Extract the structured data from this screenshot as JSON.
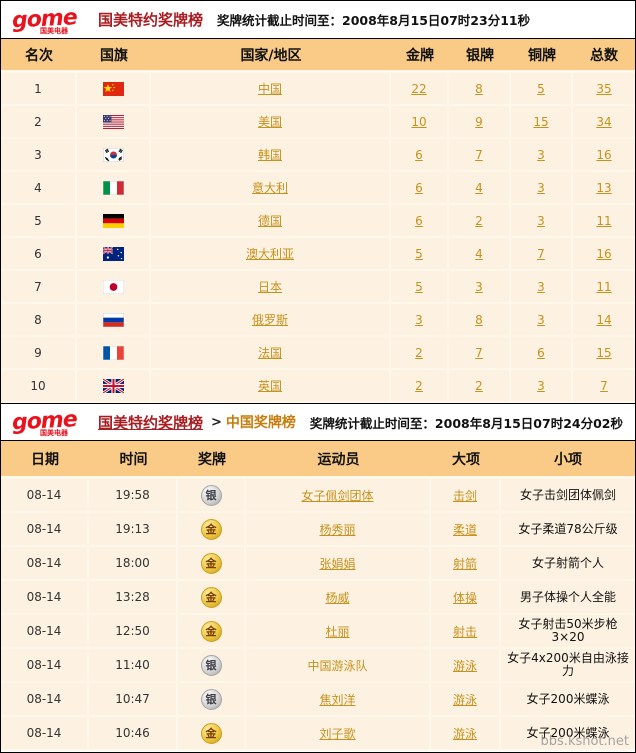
{
  "colors": {
    "header_bg": "#f9cb87",
    "row_bg": "#fdf2e2",
    "grid": "#fff7ea",
    "link_gold": "#c6921e",
    "title_red": "#a81e23",
    "crumb_orange": "#c87d0e",
    "logo_red": "#e8131d",
    "medal_gold": "#e9c23a",
    "medal_silver": "#cfcfcf"
  },
  "header1": {
    "logo_text": "gome",
    "logo_sub": "国美电器",
    "title": "国美特约奖牌榜",
    "timestamp": "奖牌统计截止时间至：2008年8月15日07时23分11秒"
  },
  "medal_table": {
    "headers": [
      "名次",
      "国旗",
      "国家/地区",
      "金牌",
      "银牌",
      "铜牌",
      "总数"
    ],
    "rows": [
      {
        "rank": "1",
        "flag": "cn",
        "country": "中国",
        "gold": "22",
        "silver": "8",
        "bronze": "5",
        "total": "35"
      },
      {
        "rank": "2",
        "flag": "us",
        "country": "美国",
        "gold": "10",
        "silver": "9",
        "bronze": "15",
        "total": "34"
      },
      {
        "rank": "3",
        "flag": "kr",
        "country": "韩国",
        "gold": "6",
        "silver": "7",
        "bronze": "3",
        "total": "16"
      },
      {
        "rank": "4",
        "flag": "it",
        "country": "意大利",
        "gold": "6",
        "silver": "4",
        "bronze": "3",
        "total": "13"
      },
      {
        "rank": "5",
        "flag": "de",
        "country": "德国",
        "gold": "6",
        "silver": "2",
        "bronze": "3",
        "total": "11"
      },
      {
        "rank": "6",
        "flag": "au",
        "country": "澳大利亚",
        "gold": "5",
        "silver": "4",
        "bronze": "7",
        "total": "16"
      },
      {
        "rank": "7",
        "flag": "jp",
        "country": "日本",
        "gold": "5",
        "silver": "3",
        "bronze": "3",
        "total": "11"
      },
      {
        "rank": "8",
        "flag": "ru",
        "country": "俄罗斯",
        "gold": "3",
        "silver": "8",
        "bronze": "3",
        "total": "14"
      },
      {
        "rank": "9",
        "flag": "fr",
        "country": "法国",
        "gold": "2",
        "silver": "7",
        "bronze": "6",
        "total": "15"
      },
      {
        "rank": "10",
        "flag": "gb",
        "country": "英国",
        "gold": "2",
        "silver": "2",
        "bronze": "3",
        "total": "7"
      }
    ]
  },
  "header2": {
    "logo_text": "gome",
    "logo_sub": "国美电器",
    "breadcrumb_root": "国美特约奖牌榜",
    "breadcrumb_sep": ">",
    "breadcrumb_current": "中国奖牌榜",
    "timestamp": "奖牌统计截止时间至：2008年8月15日07时24分02秒"
  },
  "china_table": {
    "headers": [
      "日期",
      "时间",
      "奖牌",
      "运动员",
      "大项",
      "小项"
    ],
    "rows": [
      {
        "date": "08-14",
        "time": "19:58",
        "medal": "silver",
        "medal_label": "银",
        "athlete": "女子佩剑团体",
        "athlete_link": true,
        "sport": "击剑",
        "event": "女子击剑团体佩剑"
      },
      {
        "date": "08-14",
        "time": "19:13",
        "medal": "gold",
        "medal_label": "金",
        "athlete": "杨秀丽",
        "athlete_link": true,
        "sport": "柔道",
        "event": "女子柔道78公斤级"
      },
      {
        "date": "08-14",
        "time": "18:00",
        "medal": "gold",
        "medal_label": "金",
        "athlete": "张娟娟",
        "athlete_link": true,
        "sport": "射箭",
        "event": "女子射箭个人"
      },
      {
        "date": "08-14",
        "time": "13:28",
        "medal": "gold",
        "medal_label": "金",
        "athlete": "杨威",
        "athlete_link": true,
        "sport": "体操",
        "event": "男子体操个人全能"
      },
      {
        "date": "08-14",
        "time": "12:50",
        "medal": "gold",
        "medal_label": "金",
        "athlete": "杜丽",
        "athlete_link": true,
        "sport": "射击",
        "event": "女子射击50米步枪3×20"
      },
      {
        "date": "08-14",
        "time": "11:40",
        "medal": "silver",
        "medal_label": "银",
        "athlete": "中国游泳队",
        "athlete_link": false,
        "sport": "游泳",
        "event": "女子4x200米自由泳接力"
      },
      {
        "date": "08-14",
        "time": "10:47",
        "medal": "silver",
        "medal_label": "银",
        "athlete": "焦刘洋",
        "athlete_link": true,
        "sport": "游泳",
        "event": "女子200米蝶泳"
      },
      {
        "date": "08-14",
        "time": "10:46",
        "medal": "gold",
        "medal_label": "金",
        "athlete": "刘子歌",
        "athlete_link": true,
        "sport": "游泳",
        "event": "女子200米蝶泳"
      }
    ]
  },
  "watermark": "bbs.kshot.net"
}
